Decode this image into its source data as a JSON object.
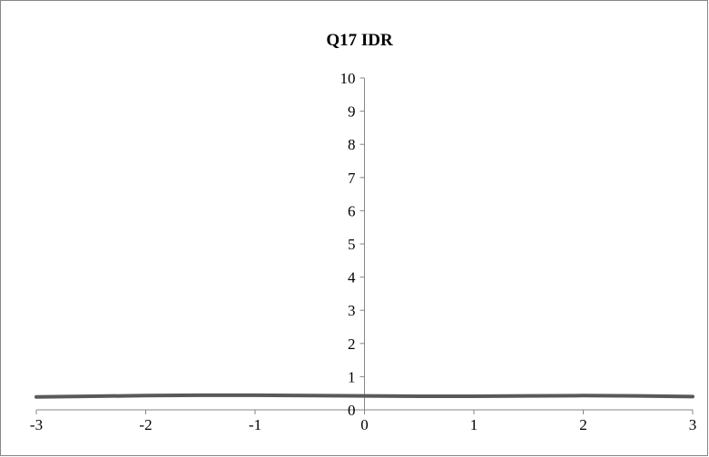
{
  "chart_data": {
    "type": "line",
    "title": "Q17 IDR",
    "xlabel": "",
    "ylabel": "",
    "xlim": [
      -3,
      3
    ],
    "ylim": [
      0,
      10
    ],
    "x_ticks": [
      "-3",
      "-2",
      "-1",
      "0",
      "1",
      "2",
      "3"
    ],
    "y_ticks": [
      "0",
      "1",
      "2",
      "3",
      "4",
      "5",
      "6",
      "7",
      "8",
      "9",
      "10"
    ],
    "grid": false,
    "legend": "none",
    "series": [
      {
        "x": [
          -3,
          -2.5,
          -2,
          -1.5,
          -1,
          -0.5,
          0,
          0.5,
          1,
          1.5,
          2,
          2.5,
          3
        ],
        "y": [
          0.39,
          0.41,
          0.43,
          0.44,
          0.44,
          0.43,
          0.42,
          0.41,
          0.41,
          0.42,
          0.43,
          0.42,
          0.4
        ],
        "color": "#595959"
      }
    ],
    "colors": {
      "axis": "#868686",
      "border": "#868686",
      "line": "#595959"
    }
  }
}
